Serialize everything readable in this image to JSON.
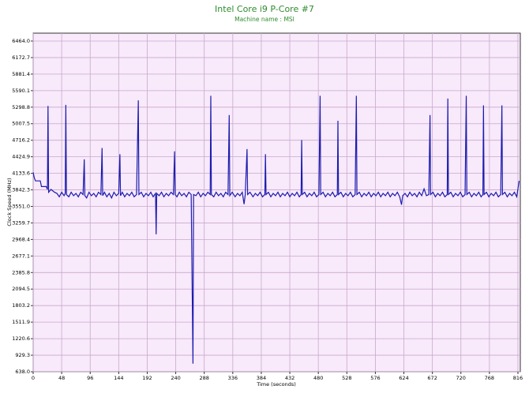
{
  "chart_data": {
    "type": "line",
    "title": "Intel Core i9 P-Core #7",
    "subtitle": "Machine name : MSI",
    "xlabel": "Time (seconds)",
    "ylabel": "Clock Speed (MHz)",
    "color": "#1c1cae",
    "grid": true,
    "xlim": [
      0,
      820
    ],
    "ylim": [
      638,
      6603
    ],
    "xticks": [
      0,
      48,
      96,
      144,
      192,
      240,
      288,
      336,
      384,
      432,
      480,
      528,
      576,
      624,
      672,
      720,
      768,
      816
    ],
    "yticks": [
      {
        "value": 638,
        "label": "638.0"
      },
      929.3,
      1220.6,
      1511.9,
      1803.2,
      2094.5,
      2385.8,
      2677.1,
      2968.4,
      3259.7,
      {
        "value": 3551,
        "label": "3551.0"
      },
      3842.3,
      4133.6,
      4424.9,
      4716.2,
      5007.5,
      5298.8,
      5590.1,
      5881.4,
      6172.7,
      {
        "value": 6464,
        "label": "6464.0"
      }
    ],
    "x": [
      0,
      2,
      4,
      12,
      14,
      22,
      24,
      25,
      26,
      30,
      36,
      40,
      44,
      48,
      52,
      54,
      55,
      56,
      60,
      64,
      68,
      72,
      76,
      80,
      84,
      86,
      87,
      90,
      94,
      98,
      102,
      106,
      110,
      114,
      116,
      117,
      120,
      124,
      128,
      132,
      136,
      140,
      144,
      146,
      147,
      150,
      154,
      158,
      162,
      166,
      170,
      174,
      177,
      178,
      182,
      186,
      190,
      194,
      198,
      202,
      206,
      207,
      208,
      212,
      216,
      220,
      224,
      228,
      232,
      236,
      238,
      239,
      242,
      246,
      250,
      254,
      258,
      262,
      266,
      269,
      270,
      274,
      278,
      282,
      286,
      290,
      294,
      298,
      299,
      300,
      304,
      308,
      312,
      316,
      320,
      324,
      328,
      330,
      331,
      335,
      340,
      344,
      348,
      352,
      355,
      357,
      360,
      361,
      365,
      370,
      374,
      378,
      382,
      386,
      390,
      391,
      392,
      396,
      400,
      404,
      408,
      412,
      416,
      420,
      424,
      428,
      432,
      436,
      440,
      444,
      448,
      451,
      452,
      453,
      457,
      461,
      465,
      469,
      473,
      477,
      481,
      483,
      484,
      488,
      492,
      496,
      500,
      504,
      508,
      512,
      513,
      514,
      518,
      522,
      526,
      530,
      534,
      538,
      542,
      544,
      545,
      549,
      553,
      557,
      561,
      565,
      569,
      573,
      577,
      581,
      585,
      589,
      593,
      597,
      601,
      605,
      609,
      613,
      617,
      620,
      622,
      626,
      630,
      634,
      638,
      642,
      646,
      650,
      654,
      658,
      662,
      666,
      668,
      669,
      673,
      677,
      681,
      685,
      689,
      693,
      697,
      698,
      699,
      703,
      707,
      711,
      715,
      719,
      723,
      727,
      729,
      730,
      734,
      738,
      742,
      746,
      750,
      754,
      757,
      758,
      759,
      763,
      767,
      771,
      775,
      779,
      783,
      787,
      789,
      790,
      794,
      798,
      802,
      806,
      810,
      814,
      818
    ],
    "values": [
      4150,
      4050,
      4000,
      4000,
      3900,
      3900,
      3850,
      5320,
      3800,
      3850,
      3800,
      3780,
      3720,
      3800,
      3740,
      3780,
      5340,
      3760,
      3720,
      3800,
      3740,
      3780,
      3720,
      3800,
      3760,
      4380,
      3740,
      3700,
      3800,
      3740,
      3780,
      3720,
      3800,
      3760,
      4580,
      3740,
      3800,
      3720,
      3780,
      3700,
      3800,
      3740,
      3780,
      4470,
      3740,
      3800,
      3720,
      3780,
      3740,
      3800,
      3720,
      3760,
      5420,
      3760,
      3800,
      3720,
      3780,
      3740,
      3800,
      3720,
      3780,
      3060,
      3780,
      3740,
      3800,
      3720,
      3780,
      3740,
      3800,
      3760,
      4520,
      3760,
      3720,
      3800,
      3740,
      3780,
      3720,
      3800,
      3760,
      780,
      3760,
      3740,
      3800,
      3720,
      3780,
      3740,
      3800,
      3760,
      5500,
      3760,
      3720,
      3800,
      3740,
      3780,
      3720,
      3800,
      3760,
      5160,
      3740,
      3800,
      3720,
      3780,
      3740,
      3800,
      3590,
      3760,
      4560,
      3760,
      3800,
      3720,
      3780,
      3740,
      3800,
      3720,
      3760,
      4470,
      3760,
      3800,
      3720,
      3780,
      3740,
      3800,
      3720,
      3780,
      3740,
      3800,
      3720,
      3780,
      3740,
      3800,
      3720,
      3760,
      4720,
      3760,
      3800,
      3720,
      3780,
      3740,
      3800,
      3720,
      3760,
      5500,
      3760,
      3800,
      3720,
      3780,
      3740,
      3800,
      3720,
      3760,
      5060,
      3760,
      3800,
      3720,
      3780,
      3740,
      3800,
      3720,
      3760,
      5500,
      3760,
      3800,
      3720,
      3780,
      3740,
      3800,
      3720,
      3780,
      3740,
      3800,
      3720,
      3780,
      3740,
      3800,
      3720,
      3780,
      3740,
      3800,
      3720,
      3580,
      3740,
      3780,
      3720,
      3800,
      3740,
      3780,
      3720,
      3800,
      3740,
      3860,
      3740,
      3760,
      5160,
      3760,
      3800,
      3720,
      3780,
      3740,
      3800,
      3720,
      3760,
      5450,
      3760,
      3800,
      3720,
      3780,
      3740,
      3800,
      3720,
      3760,
      5500,
      3760,
      3800,
      3720,
      3780,
      3740,
      3800,
      3720,
      3760,
      5330,
      3760,
      3800,
      3720,
      3780,
      3740,
      3800,
      3720,
      3760,
      5330,
      3760,
      3800,
      3720,
      3780,
      3740,
      3800,
      3720,
      4000
    ]
  }
}
